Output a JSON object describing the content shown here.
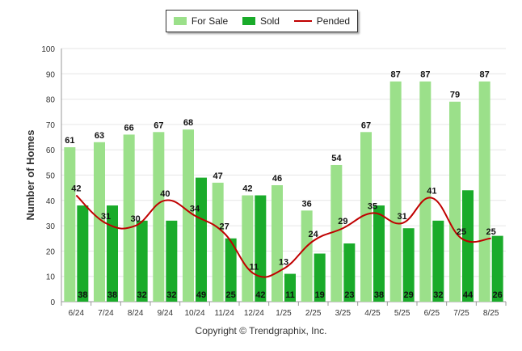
{
  "chart_data": {
    "type": "bar",
    "ylabel": "Number of Homes",
    "ylim": [
      0,
      100
    ],
    "yticks": [
      0,
      10,
      20,
      30,
      40,
      50,
      60,
      70,
      80,
      90,
      100
    ],
    "categories": [
      "6/24",
      "7/24",
      "8/24",
      "9/24",
      "10/24",
      "11/24",
      "12/24",
      "1/25",
      "2/25",
      "3/25",
      "4/25",
      "5/25",
      "6/25",
      "7/25",
      "8/25"
    ],
    "series": [
      {
        "name": "For Sale",
        "type": "bar",
        "color": "#9be08a",
        "values": [
          61,
          63,
          66,
          67,
          68,
          47,
          42,
          46,
          36,
          54,
          67,
          87,
          87,
          79,
          87
        ]
      },
      {
        "name": "Sold",
        "type": "bar",
        "color": "#1aab2a",
        "values": [
          38,
          38,
          32,
          32,
          49,
          25,
          42,
          11,
          19,
          23,
          38,
          29,
          32,
          44,
          26
        ]
      },
      {
        "name": "Pended",
        "type": "line",
        "color": "#c00000",
        "values": [
          42,
          31,
          30,
          40,
          34,
          27,
          11,
          13,
          24,
          29,
          35,
          31,
          41,
          25,
          25
        ]
      }
    ],
    "legend": "top-center"
  },
  "footer": {
    "copyright": "Copyright © Trendgraphix, Inc."
  }
}
